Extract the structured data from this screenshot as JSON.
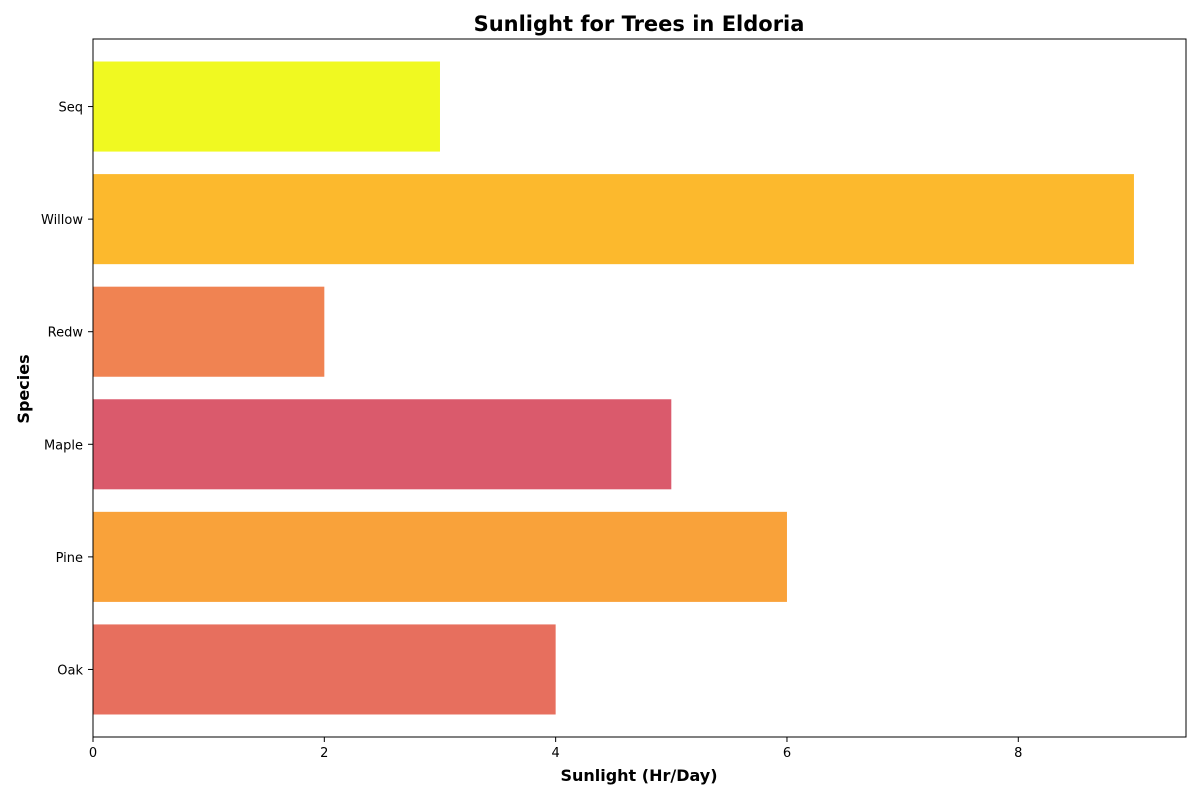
{
  "chart_data": {
    "type": "bar",
    "orientation": "horizontal",
    "title": "Sunlight for Trees in Eldoria",
    "xlabel": "Sunlight (Hr/Day)",
    "ylabel": "Species",
    "categories": [
      "Oak",
      "Pine",
      "Maple",
      "Redw",
      "Willow",
      "Seq"
    ],
    "values": [
      4,
      6,
      5,
      2,
      9,
      3
    ],
    "colors": [
      "#e76f5e",
      "#f9a23a",
      "#da5a6c",
      "#f08352",
      "#fcb92d",
      "#f0f921"
    ],
    "xlim": [
      0,
      9.45
    ],
    "xticks": [
      0,
      2,
      4,
      6,
      8
    ],
    "grid": false,
    "legend": "none"
  }
}
